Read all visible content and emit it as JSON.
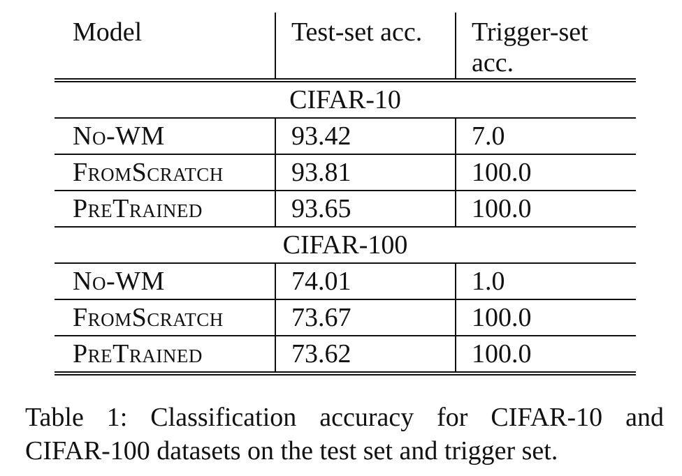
{
  "table": {
    "headers": {
      "model": "Model",
      "test_acc": "Test-set acc.",
      "trigger_acc_line1": "Trigger-set",
      "trigger_acc_line2": "acc."
    },
    "groups": [
      {
        "name": "CIFAR-10",
        "rows": [
          {
            "model": "No-WM",
            "test": "93.42",
            "trigger": "7.0"
          },
          {
            "model": "FromScratch",
            "test": "93.81",
            "trigger": "100.0"
          },
          {
            "model": "PreTrained",
            "test": "93.65",
            "trigger": "100.0"
          }
        ]
      },
      {
        "name": "CIFAR-100",
        "rows": [
          {
            "model": "No-WM",
            "test": "74.01",
            "trigger": "1.0"
          },
          {
            "model": "FromScratch",
            "test": "73.67",
            "trigger": "100.0"
          },
          {
            "model": "PreTrained",
            "test": "73.62",
            "trigger": "100.0"
          }
        ]
      }
    ]
  },
  "caption": {
    "line1": "Table 1: Classification accuracy for CIFAR-10 and",
    "line2": "CIFAR-100 datasets on the test set and trigger set."
  }
}
